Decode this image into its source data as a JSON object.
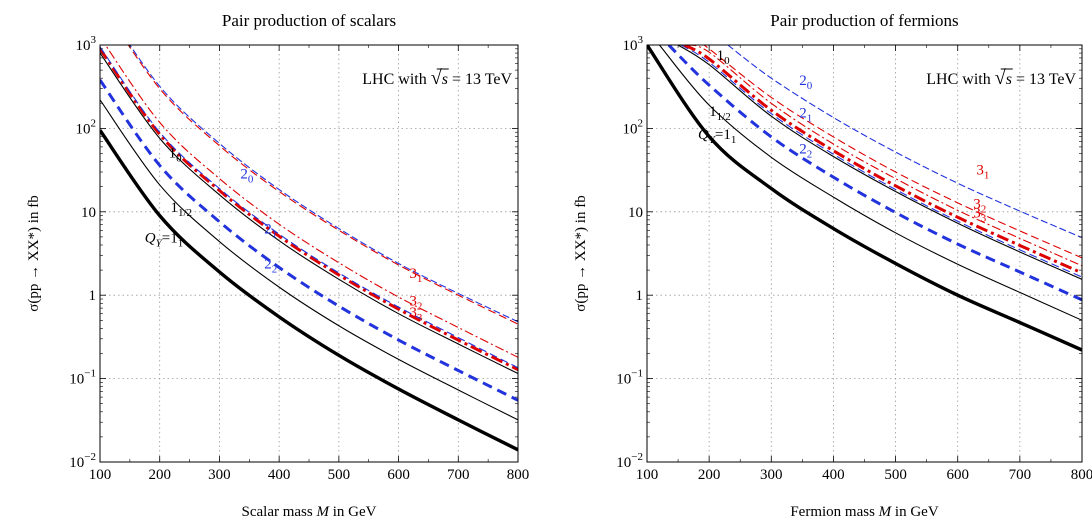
{
  "chart_data": [
    {
      "type": "line",
      "title": "Pair production of scalars",
      "xlabel": "Scalar mass M in GeV",
      "ylabel": "σ(pp → XX*) in fb",
      "annotation": "LHC with √s = 13 TeV",
      "x_scale": "linear",
      "y_scale": "log",
      "xlim": [
        100,
        800
      ],
      "ylim": [
        0.01,
        1000
      ],
      "x_ticks": [
        100,
        200,
        300,
        400,
        500,
        600,
        700,
        800
      ],
      "y_ticks": [
        {
          "value": 0.01,
          "label": "10",
          "sup": "−2"
        },
        {
          "value": 0.1,
          "label": "10",
          "sup": "−1"
        },
        {
          "value": 1,
          "label": "1",
          "sup": ""
        },
        {
          "value": 10,
          "label": "10",
          "sup": ""
        },
        {
          "value": 100,
          "label": "10",
          "sup": "2"
        },
        {
          "value": 1000,
          "label": "10",
          "sup": "3"
        }
      ],
      "grid": true,
      "series": [
        {
          "id": "q1_1",
          "color": "#000000",
          "width": 3.4,
          "dash": "",
          "x": [
            100,
            200,
            300,
            400,
            500,
            600,
            700,
            800
          ],
          "y": [
            95,
            9,
            1.9,
            0.55,
            0.19,
            0.075,
            0.032,
            0.014
          ]
        },
        {
          "id": "q1_half",
          "color": "#000000",
          "width": 1.1,
          "dash": "",
          "x": [
            100,
            200,
            300,
            400,
            500,
            600,
            700,
            800
          ],
          "y": [
            220,
            21,
            4.4,
            1.25,
            0.43,
            0.17,
            0.073,
            0.032
          ]
        },
        {
          "id": "q2_2",
          "color": "#2233dd",
          "width": 3.0,
          "dash": "10,6",
          "x": [
            100,
            200,
            300,
            400,
            500,
            600,
            700,
            800
          ],
          "y": [
            380,
            36,
            7.6,
            2.15,
            0.74,
            0.29,
            0.125,
            0.055
          ]
        },
        {
          "id": "q1_0",
          "color": "#000000",
          "width": 1.1,
          "dash": "",
          "x": [
            100,
            200,
            300,
            400,
            500,
            600,
            700,
            800
          ],
          "y": [
            800,
            76,
            16,
            4.5,
            1.55,
            0.6,
            0.26,
            0.115
          ]
        },
        {
          "id": "q3_3",
          "color": "#dd0000",
          "width": 3.0,
          "dash": "12,4,3,4",
          "x": [
            100,
            200,
            300,
            400,
            500,
            600,
            700,
            800
          ],
          "y": [
            900,
            85,
            18,
            5.1,
            1.75,
            0.68,
            0.29,
            0.128
          ]
        },
        {
          "id": "q2_1",
          "color": "#2233dd",
          "width": 1.1,
          "dash": "8,4",
          "x": [
            100,
            200,
            300,
            400,
            500,
            600,
            700,
            800
          ],
          "y": [
            950,
            90,
            19,
            5.4,
            1.85,
            0.72,
            0.31,
            0.135
          ]
        },
        {
          "id": "q3_2",
          "color": "#dd0000",
          "width": 1.1,
          "dash": "9,3,2,3",
          "x": [
            100,
            200,
            300,
            400,
            500,
            600,
            700,
            800
          ],
          "y": [
            1250,
            118,
            25,
            7.1,
            2.45,
            0.95,
            0.41,
            0.18
          ]
        },
        {
          "id": "q3_1",
          "color": "#dd0000",
          "width": 1.1,
          "dash": "8,4",
          "x": [
            100,
            200,
            300,
            400,
            500,
            600,
            700,
            800
          ],
          "y": [
            3300,
            300,
            62,
            17.5,
            6,
            2.3,
            1,
            0.45
          ]
        },
        {
          "id": "q2_0",
          "color": "#2233dd",
          "width": 1.1,
          "dash": "7,3",
          "x": [
            100,
            200,
            300,
            400,
            500,
            600,
            700,
            800
          ],
          "y": [
            3500,
            320,
            66,
            18.5,
            6.3,
            2.4,
            1.05,
            0.48
          ]
        }
      ],
      "labels": [
        {
          "text": "1",
          "sub": "0",
          "color": "#000000",
          "x": 215,
          "y": 45
        },
        {
          "text": "2",
          "sub": "0",
          "color": "#2233dd",
          "x": 335,
          "y": 25
        },
        {
          "text": "1",
          "sub": "1/2",
          "color": "#000000",
          "x": 218,
          "y": 10
        },
        {
          "text": "2",
          "sub": "1",
          "color": "#2233dd",
          "x": 375,
          "y": 5.5
        },
        {
          "text": "Q",
          "sub": "Y",
          "suffix": "=1",
          "suffix_sub": "1",
          "color": "#000000",
          "x": 175,
          "y": 4.3
        },
        {
          "text": "2",
          "sub": "2",
          "color": "#2233dd",
          "x": 375,
          "y": 2.1
        },
        {
          "text": "3",
          "sub": "1",
          "color": "#dd0000",
          "x": 618,
          "y": 1.6
        },
        {
          "text": "3",
          "sub": "2",
          "color": "#dd0000",
          "x": 618,
          "y": 0.75
        },
        {
          "text": "3",
          "sub": "3",
          "color": "#dd0000",
          "x": 618,
          "y": 0.55
        }
      ]
    },
    {
      "type": "line",
      "title": "Pair production of fermions",
      "xlabel": "Fermion mass M in GeV",
      "ylabel": "σ(pp → XX*) in fb",
      "annotation": "LHC with √s = 13 TeV",
      "x_scale": "linear",
      "y_scale": "log",
      "xlim": [
        100,
        800
      ],
      "ylim": [
        0.01,
        1000
      ],
      "x_ticks": [
        100,
        200,
        300,
        400,
        500,
        600,
        700,
        800
      ],
      "y_ticks": [
        {
          "value": 0.01,
          "label": "10",
          "sup": "−2"
        },
        {
          "value": 0.1,
          "label": "10",
          "sup": "−1"
        },
        {
          "value": 1,
          "label": "1",
          "sup": ""
        },
        {
          "value": 10,
          "label": "10",
          "sup": ""
        },
        {
          "value": 100,
          "label": "10",
          "sup": "2"
        },
        {
          "value": 1000,
          "label": "10",
          "sup": "3"
        }
      ],
      "grid": true,
      "series": [
        {
          "id": "q1_1",
          "color": "#000000",
          "width": 3.4,
          "dash": "",
          "x": [
            100,
            200,
            300,
            400,
            500,
            600,
            700,
            800
          ],
          "y": [
            1000,
            80,
            19,
            6.3,
            2.4,
            1.0,
            0.47,
            0.22
          ]
        },
        {
          "id": "q1_half",
          "color": "#000000",
          "width": 1.1,
          "dash": "",
          "x": [
            120,
            200,
            300,
            400,
            500,
            600,
            700,
            800
          ],
          "y": [
            1000,
            190,
            45,
            15,
            5.6,
            2.35,
            1.08,
            0.5
          ]
        },
        {
          "id": "q2_2",
          "color": "#2233dd",
          "width": 3.0,
          "dash": "10,6",
          "x": [
            135,
            200,
            300,
            400,
            500,
            600,
            700,
            800
          ],
          "y": [
            1000,
            330,
            79,
            26,
            9.8,
            4.1,
            1.9,
            0.88
          ]
        },
        {
          "id": "q1_0",
          "color": "#000000",
          "width": 1.1,
          "dash": "",
          "x": [
            150,
            200,
            300,
            400,
            500,
            600,
            700,
            800
          ],
          "y": [
            1000,
            580,
            140,
            46,
            17.5,
            7.3,
            3.3,
            1.55
          ]
        },
        {
          "id": "q2_1",
          "color": "#2233dd",
          "width": 1.1,
          "dash": "8,4",
          "x": [
            155,
            200,
            300,
            400,
            500,
            600,
            700,
            800
          ],
          "y": [
            1000,
            620,
            150,
            49,
            18.5,
            7.7,
            3.5,
            1.65
          ]
        },
        {
          "id": "q3_3",
          "color": "#dd0000",
          "width": 3.0,
          "dash": "12,4,3,4",
          "x": [
            160,
            200,
            300,
            400,
            500,
            600,
            700,
            800
          ],
          "y": [
            1000,
            680,
            165,
            54,
            20.5,
            8.6,
            3.95,
            1.85
          ]
        },
        {
          "id": "q3_2",
          "color": "#dd0000",
          "width": 1.1,
          "dash": "9,3,2,3",
          "x": [
            165,
            200,
            300,
            400,
            500,
            600,
            700,
            800
          ],
          "y": [
            1000,
            820,
            200,
            65,
            25,
            10.4,
            4.8,
            2.25
          ]
        },
        {
          "id": "q3_1",
          "color": "#dd0000",
          "width": 1.1,
          "dash": "8,4",
          "x": [
            190,
            200,
            300,
            400,
            500,
            600,
            700,
            800
          ],
          "y": [
            1000,
            900,
            235,
            79,
            30,
            12.8,
            5.9,
            2.8
          ]
        },
        {
          "id": "q2_0",
          "color": "#2233dd",
          "width": 1.1,
          "dash": "7,3",
          "x": [
            230,
            300,
            400,
            500,
            600,
            700,
            800
          ],
          "y": [
            1000,
            400,
            135,
            52,
            22,
            10.2,
            4.9
          ]
        }
      ],
      "labels": [
        {
          "text": "1",
          "sub": "0",
          "color": "#000000",
          "x": 212,
          "y": 660
        },
        {
          "text": "2",
          "sub": "0",
          "color": "#2233dd",
          "x": 345,
          "y": 330
        },
        {
          "text": "1",
          "sub": "1/2",
          "color": "#000000",
          "x": 200,
          "y": 140
        },
        {
          "text": "2",
          "sub": "1",
          "color": "#2233dd",
          "x": 345,
          "y": 135
        },
        {
          "text": "Q",
          "sub": "Y",
          "suffix": "=1",
          "suffix_sub": "1",
          "color": "#000000",
          "x": 182,
          "y": 75
        },
        {
          "text": "2",
          "sub": "2",
          "color": "#2233dd",
          "x": 345,
          "y": 50
        },
        {
          "text": "3",
          "sub": "1",
          "color": "#dd0000",
          "x": 630,
          "y": 28
        },
        {
          "text": "3",
          "sub": "2",
          "color": "#dd0000",
          "x": 625,
          "y": 11
        },
        {
          "text": "3",
          "sub": "3",
          "color": "#dd0000",
          "x": 625,
          "y": 8.5
        }
      ]
    }
  ]
}
